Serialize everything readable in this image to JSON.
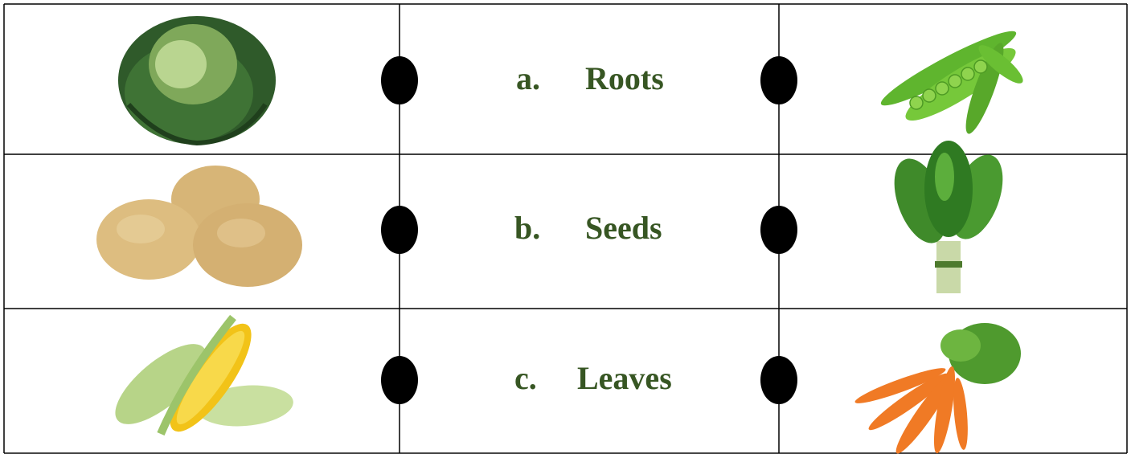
{
  "rows": [
    {
      "letter": "a.",
      "word": "Roots"
    },
    {
      "letter": "b.",
      "word": "Seeds"
    },
    {
      "letter": "c.",
      "word": "Leaves"
    }
  ]
}
